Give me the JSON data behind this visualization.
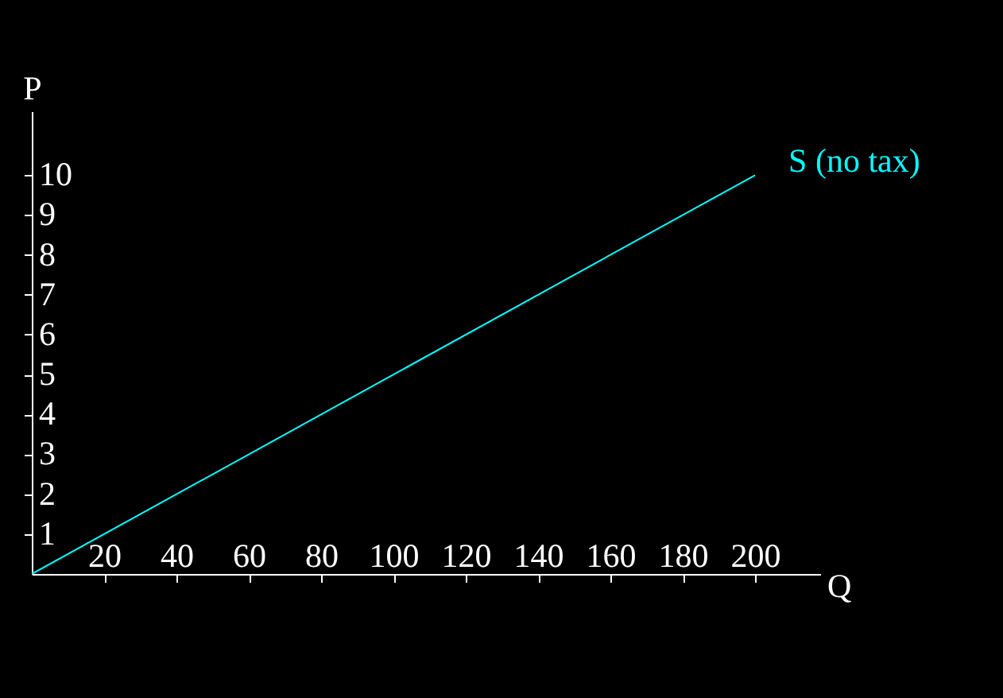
{
  "chart_data": {
    "type": "line",
    "xlabel": "Q",
    "ylabel": "P",
    "x": [
      0,
      200
    ],
    "series": [
      {
        "name": "S (no tax)",
        "color": "#00ffff",
        "values": [
          0,
          10
        ]
      }
    ],
    "xlim": [
      0,
      218
    ],
    "ylim": [
      0,
      11.6
    ],
    "xticks": [
      20,
      40,
      60,
      80,
      100,
      120,
      140,
      160,
      180,
      200
    ],
    "yticks": [
      1,
      2,
      3,
      4,
      5,
      6,
      7,
      8,
      9,
      10
    ]
  }
}
